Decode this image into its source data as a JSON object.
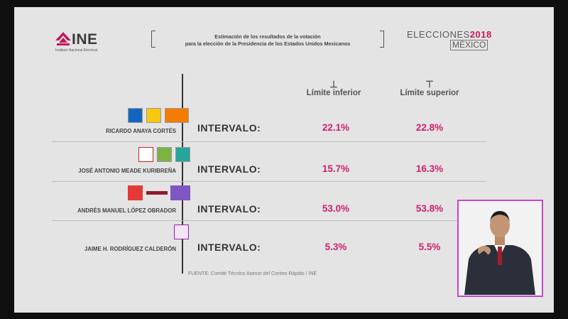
{
  "header": {
    "logo_text": "INE",
    "logo_subtext": "Instituto Nacional Electoral",
    "estimate_line1": "Estimación de los resultados de la votación",
    "estimate_line2": "para la elección de la Presidencia de los Estados Unidos Mexicanos",
    "elecciones": "ELECCIONES",
    "year": "2018",
    "country": "MÉXICO"
  },
  "columns": {
    "lower_label": "Límite inferior",
    "upper_label": "Límite superior"
  },
  "rows": [
    {
      "candidate": "RICARDO ANAYA CORTÉS",
      "interval_label": "INTERVALO:",
      "lower": "22.1%",
      "upper": "22.8%",
      "party_logos": [
        "pan-logo-icon",
        "prd-logo-icon",
        "mc-logo-icon"
      ]
    },
    {
      "candidate": "JOSÉ ANTONIO MEADE KURIBREÑA",
      "interval_label": "INTERVALO:",
      "lower": "15.7%",
      "upper": "16.3%",
      "party_logos": [
        "pri-logo-icon",
        "pvem-logo-icon",
        "panal-logo-icon"
      ]
    },
    {
      "candidate": "ANDRÉS MANUEL LÓPEZ OBRADOR",
      "interval_label": "INTERVALO:",
      "lower": "53.0%",
      "upper": "53.8%",
      "party_logos": [
        "pt-logo-icon",
        "morena-logo-icon",
        "pes-logo-icon"
      ]
    },
    {
      "candidate": "JAIME H. RODRÍGUEZ CALDERÓN",
      "interval_label": "INTERVALO:",
      "lower": "5.3%",
      "upper": "5.5%",
      "party_logos": [
        "independiente-logo-icon"
      ]
    }
  ],
  "footer": {
    "source": "FUENTE: Comité Técnico Asesor del Conteo Rápido / INE"
  },
  "colors": {
    "accent": "#d0206c",
    "interpreter_frame": "#c447c9"
  }
}
